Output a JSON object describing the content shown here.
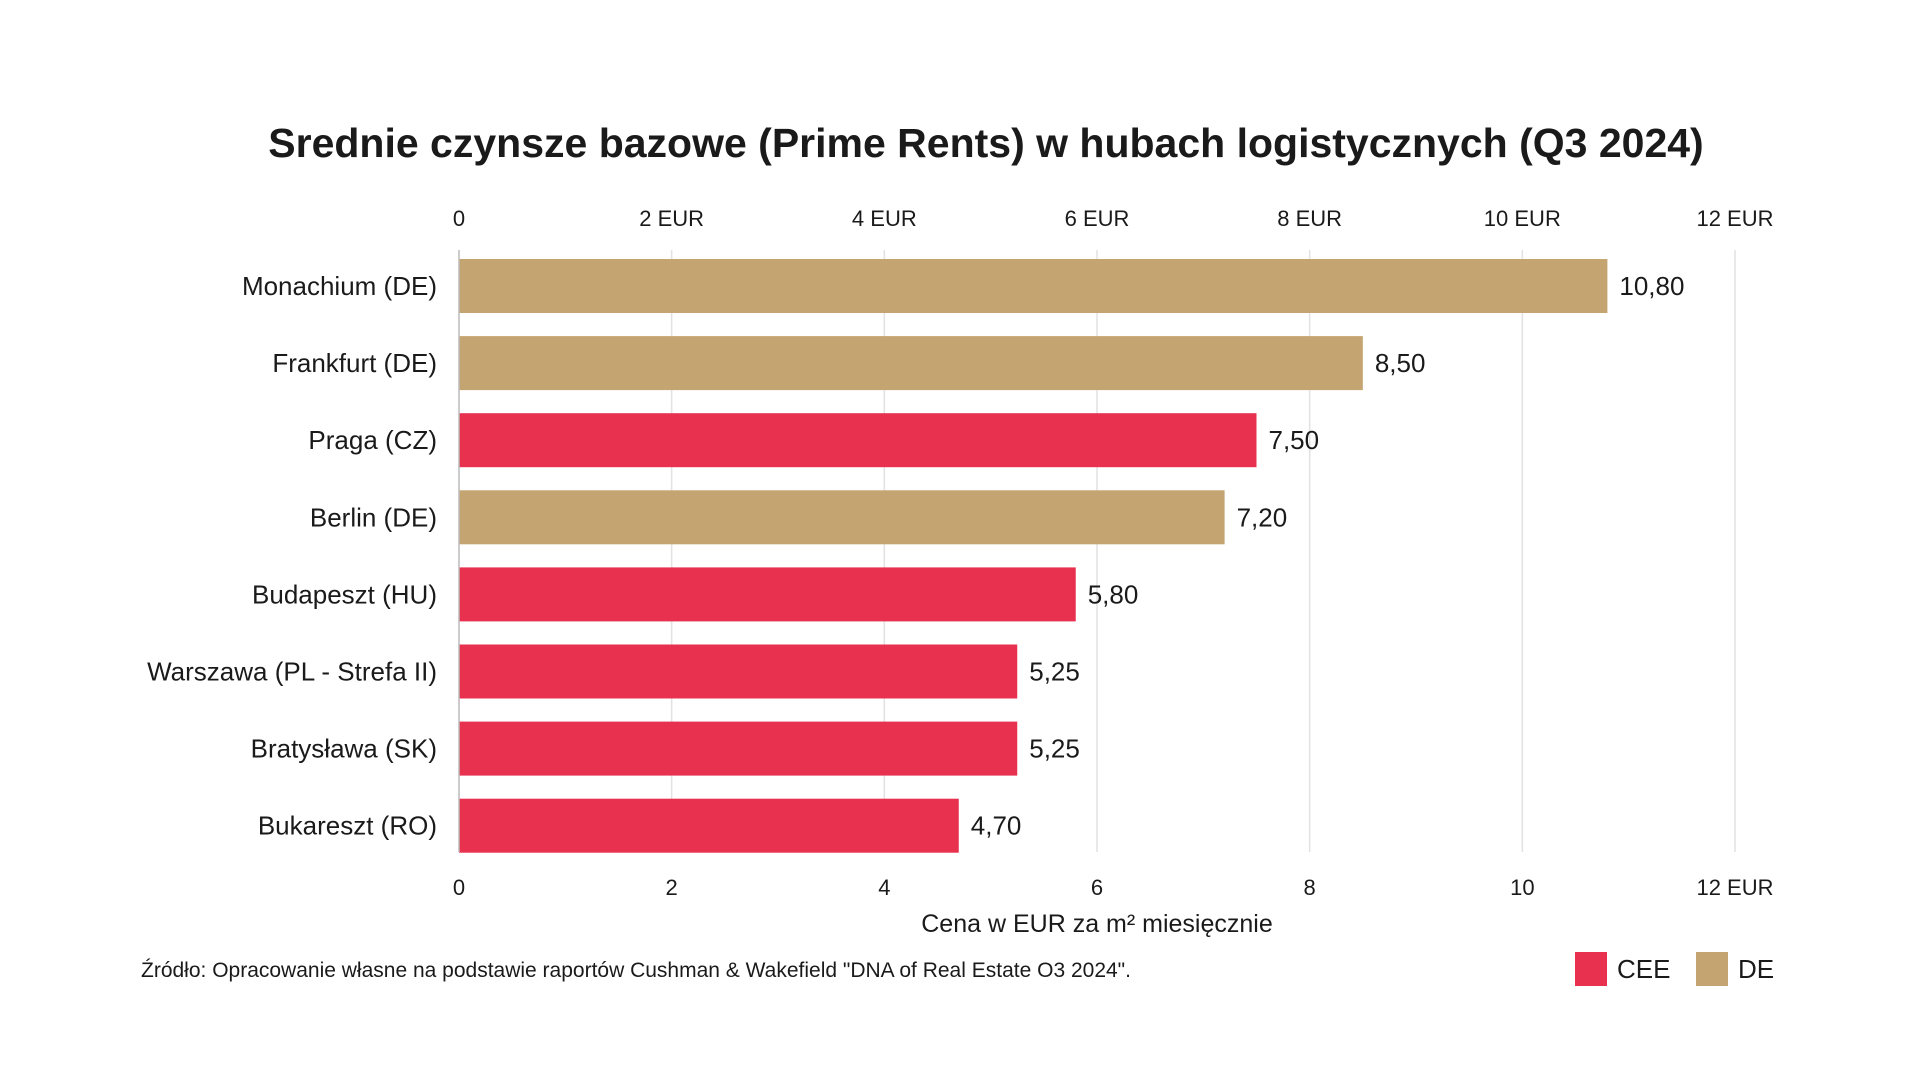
{
  "chart_data": {
    "type": "bar",
    "orientation": "horizontal",
    "title": "Srednie czynsze bazowe (Prime Rents) w hubach logistycznych (Q3 2024)",
    "xlabel": "Cena w EUR za m² miesięcznie",
    "ylabel": "",
    "xlim": [
      0,
      12
    ],
    "grid": true,
    "top_tick_labels": [
      "0",
      "2 EUR",
      "4 EUR",
      "6 EUR",
      "8 EUR",
      "10 EUR",
      "12 EUR"
    ],
    "bottom_tick_labels": [
      "0",
      "2",
      "4",
      "6",
      "8",
      "10",
      "12 EUR"
    ],
    "tick_values": [
      0,
      2,
      4,
      6,
      8,
      10,
      12
    ],
    "categories": [
      "Monachium (DE)",
      "Frankfurt (DE)",
      "Praga (CZ)",
      "Berlin (DE)",
      "Budapeszt (HU)",
      "Warszawa (PL - Strefa II)",
      "Bratysława (SK)",
      "Bukareszt (RO)"
    ],
    "values": [
      10.8,
      8.5,
      7.5,
      7.2,
      5.8,
      5.25,
      5.25,
      4.7
    ],
    "value_labels": [
      "10,80",
      "8,50",
      "7,50",
      "7,20",
      "5,80",
      "5,25",
      "5,25",
      "4,70"
    ],
    "groups": [
      "DE",
      "DE",
      "CEE",
      "DE",
      "CEE",
      "CEE",
      "CEE",
      "CEE"
    ],
    "legend": {
      "placement": "bottom-right",
      "entries": [
        {
          "name": "CEE",
          "color": "#E8304F"
        },
        {
          "name": "DE",
          "color": "#C4A572"
        }
      ]
    },
    "source": "Źródło: Opracowanie własne na podstawie raportów Cushman & Wakefield \"DNA of Real Estate O3 2024\"."
  }
}
